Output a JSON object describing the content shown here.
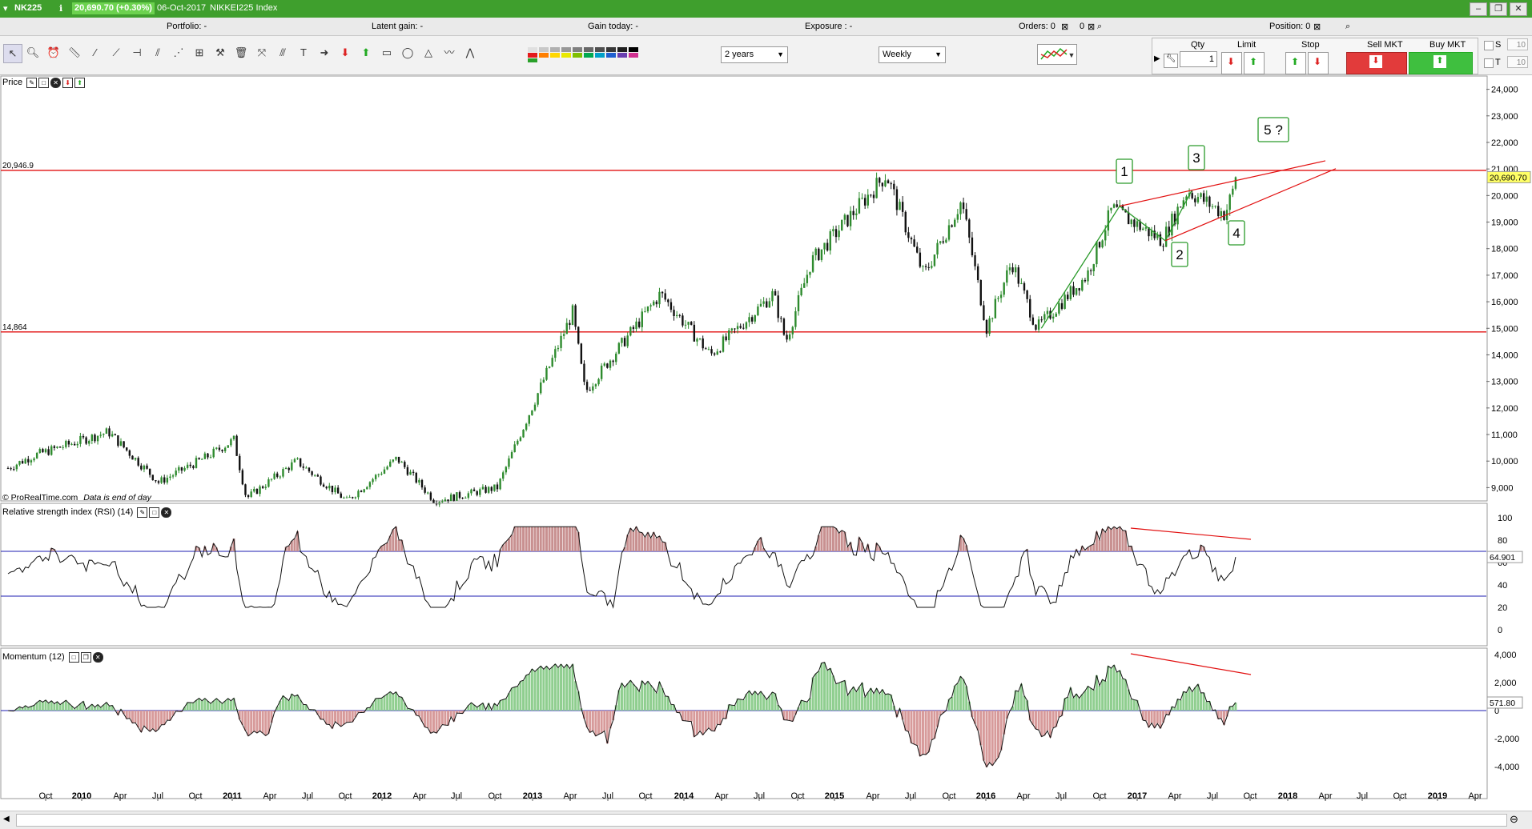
{
  "window": {
    "symbol": "NK225",
    "quote": "20,690.70 (+0.30%)",
    "date": "06-Oct-2017",
    "instrument": "NIKKEI225 Index"
  },
  "info_bar": {
    "portfolio": "Portfolio: -",
    "latent_gain": "Latent gain: -",
    "gain_today": "Gain today: -",
    "exposure": "Exposure : -",
    "orders": "Orders: 0",
    "orders2": "0",
    "position": "Position: 0"
  },
  "toolbar": {
    "period": "2 years",
    "timeframe": "Weekly",
    "qty_label": "Qty",
    "qty_value": "1",
    "limit_label": "Limit",
    "stop_label": "Stop",
    "sell_label": "Sell MKT",
    "buy_label": "Buy MKT",
    "s_label": "S",
    "s_value": "10",
    "t_label": "T",
    "t_value": "10"
  },
  "colors": {
    "titlebar": "#3f9f2d",
    "sell": "#e23b3b",
    "buy": "#3fbf3f",
    "candle_up": "#2e8b2e",
    "candle_down": "#111111",
    "level_line": "#e21010",
    "rsi_band": "#1c1cb0"
  },
  "chart_data": {
    "type": "candlestick",
    "title": "Price",
    "timeframe": "weekly",
    "y_range": [
      8500,
      24500
    ],
    "y_ticks": [
      "24,000",
      "23,000",
      "22,000",
      "21,000",
      "20,000",
      "19,000",
      "18,000",
      "17,000",
      "16,000",
      "15,000",
      "14,000",
      "13,000",
      "12,000",
      "11,000",
      "10,000",
      "9,000"
    ],
    "x_ticks": [
      "Oct",
      "2010",
      "Apr",
      "Jul",
      "Oct",
      "2011",
      "Apr",
      "Jul",
      "Oct",
      "2012",
      "Apr",
      "Jul",
      "Oct",
      "2013",
      "Apr",
      "Jul",
      "Oct",
      "2014",
      "Apr",
      "Jul",
      "Oct",
      "2015",
      "Apr",
      "Jul",
      "Oct",
      "2016",
      "Apr",
      "Jul",
      "Oct",
      "2017",
      "Apr",
      "Jul",
      "Oct",
      "2018",
      "Apr",
      "Jul",
      "Oct",
      "2019",
      "Apr"
    ],
    "horizontal_levels": [
      {
        "label": "20,946.9",
        "value": 20946.9
      },
      {
        "label": "14,864",
        "value": 14864
      }
    ],
    "last_price": "20,690.70",
    "price_path": [
      {
        "date": "2009-07",
        "close": 9500
      },
      {
        "date": "2009-10",
        "close": 10200
      },
      {
        "date": "2010-04",
        "close": 11100
      },
      {
        "date": "2010-08",
        "close": 9200
      },
      {
        "date": "2010-12",
        "close": 10200
      },
      {
        "date": "2011-02",
        "close": 10800
      },
      {
        "date": "2011-03",
        "close": 8600
      },
      {
        "date": "2011-07",
        "close": 10000
      },
      {
        "date": "2011-11",
        "close": 8500
      },
      {
        "date": "2012-03",
        "close": 10100
      },
      {
        "date": "2012-06",
        "close": 8500
      },
      {
        "date": "2012-11",
        "close": 9000
      },
      {
        "date": "2013-05",
        "close": 15600
      },
      {
        "date": "2013-06",
        "close": 12600
      },
      {
        "date": "2013-12",
        "close": 16300
      },
      {
        "date": "2014-04",
        "close": 14000
      },
      {
        "date": "2014-09",
        "close": 16300
      },
      {
        "date": "2014-10",
        "close": 14500
      },
      {
        "date": "2014-12",
        "close": 17500
      },
      {
        "date": "2015-06",
        "close": 20800
      },
      {
        "date": "2015-09",
        "close": 17000
      },
      {
        "date": "2015-12",
        "close": 19800
      },
      {
        "date": "2016-02",
        "close": 15000
      },
      {
        "date": "2016-04",
        "close": 17500
      },
      {
        "date": "2016-06",
        "close": 15000
      },
      {
        "date": "2016-10",
        "close": 17000
      },
      {
        "date": "2016-12",
        "close": 19500
      },
      {
        "date": "2017-04",
        "close": 18300
      },
      {
        "date": "2017-06",
        "close": 20200
      },
      {
        "date": "2017-09",
        "close": 19300
      },
      {
        "date": "2017-10",
        "close": 20690.7
      }
    ],
    "wave_labels": [
      "1",
      "2",
      "3",
      "4",
      "5 ?"
    ],
    "annotations": [
      "© ProRealTime.com",
      "Data is end of day"
    ],
    "indicators": [
      {
        "name": "Relative strength index (RSI) (14)",
        "y_ticks": [
          "100",
          "80",
          "60",
          "40",
          "20",
          "0"
        ],
        "bands": [
          70,
          30
        ],
        "last_value": "64.901"
      },
      {
        "name": "Momentum (12)",
        "y_ticks": [
          "4,000",
          "2,000",
          "0",
          "-2,000",
          "-4,000"
        ],
        "last_value": "571.80"
      }
    ]
  }
}
